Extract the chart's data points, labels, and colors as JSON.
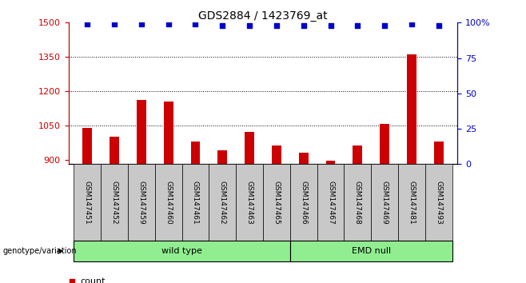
{
  "title": "GDS2884 / 1423769_at",
  "samples": [
    "GSM147451",
    "GSM147452",
    "GSM147459",
    "GSM147460",
    "GSM147461",
    "GSM147462",
    "GSM147463",
    "GSM147465",
    "GSM147466",
    "GSM147467",
    "GSM147468",
    "GSM147469",
    "GSM147481",
    "GSM147493"
  ],
  "counts": [
    1040,
    1000,
    1160,
    1155,
    980,
    940,
    1020,
    960,
    930,
    895,
    960,
    1055,
    1360,
    980
  ],
  "percentile_ranks": [
    99,
    99,
    99,
    99,
    99,
    98,
    98,
    98,
    98,
    98,
    98,
    98,
    99,
    98
  ],
  "groups": [
    {
      "label": "wild type",
      "start": 0,
      "end": 8,
      "color": "#90EE90"
    },
    {
      "label": "EMD null",
      "start": 8,
      "end": 14,
      "color": "#90EE90"
    }
  ],
  "ylim_left": [
    880,
    1500
  ],
  "ylim_right": [
    0,
    100
  ],
  "yticks_left": [
    900,
    1050,
    1200,
    1350,
    1500
  ],
  "yticks_right": [
    0,
    25,
    50,
    75,
    100
  ],
  "bar_color": "#CC0000",
  "dot_color": "#0000CC",
  "background_color": "#ffffff",
  "axis_color_left": "#CC0000",
  "axis_color_right": "#0000CC",
  "legend_count_color": "#CC0000",
  "legend_percentile_color": "#0000CC",
  "grid_color": "#000000",
  "tick_label_bg": "#C8C8C8",
  "bar_width": 0.35
}
